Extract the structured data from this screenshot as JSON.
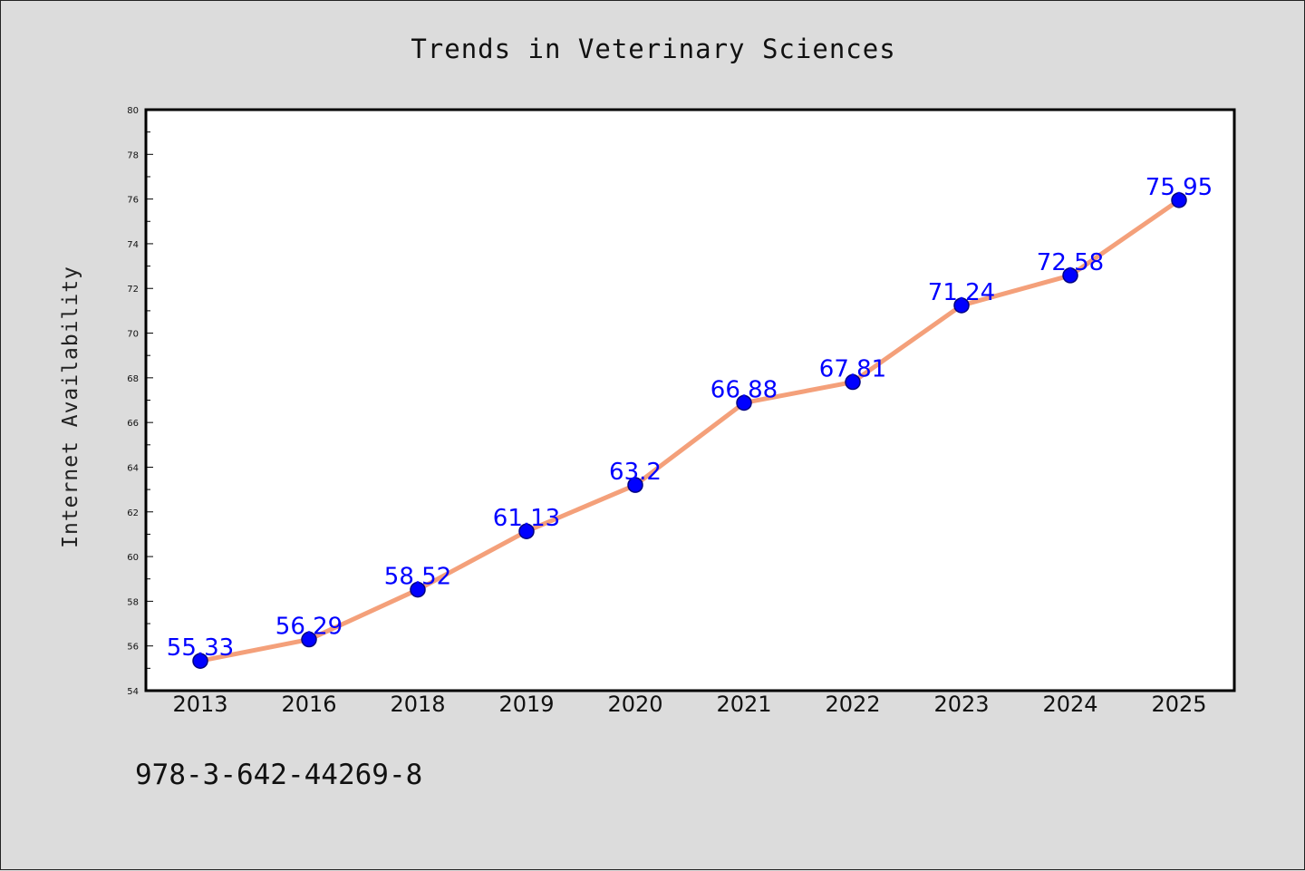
{
  "chart_data": {
    "type": "line",
    "title": "Trends in Veterinary Sciences",
    "xlabel": "",
    "ylabel": "Internet Availability",
    "categories": [
      "2013",
      "2016",
      "2018",
      "2019",
      "2020",
      "2021",
      "2022",
      "2023",
      "2024",
      "2025"
    ],
    "values": [
      55.33,
      56.29,
      58.52,
      61.13,
      63.2,
      66.88,
      67.81,
      71.24,
      72.58,
      75.95
    ],
    "data_labels": [
      "55.33",
      "56.29",
      "58.52",
      "61.13",
      "63.2",
      "66.88",
      "67.81",
      "71.24",
      "72.58",
      "75.95"
    ],
    "ylim": [
      54,
      80
    ],
    "yticks": [
      "54",
      "56",
      "58",
      "60",
      "62",
      "64",
      "66",
      "68",
      "70",
      "72",
      "74",
      "76",
      "78",
      "80"
    ],
    "grid": false,
    "colors": {
      "line": "#f4a07a",
      "marker": "#0000ff",
      "marker_edge": "#000080",
      "data_label": "#0000ff",
      "background": "#dcdcdc",
      "plot_background": "#ffffff"
    }
  },
  "footer": {
    "isbn": "978-3-642-44269-8"
  }
}
